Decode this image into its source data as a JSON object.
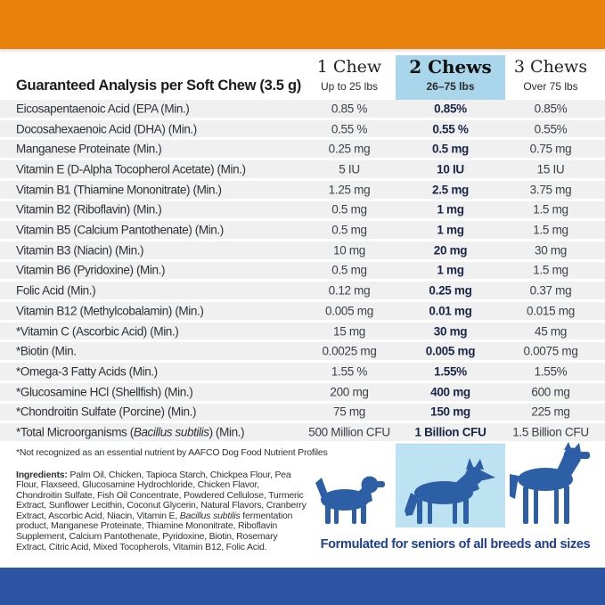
{
  "colors": {
    "orange": "#EA820E",
    "highlight_blue": "#A9D6EA",
    "highlight_blue_light": "#BDE3F2",
    "footer_navy": "#2B55A2",
    "dog_blue": "#2D5FA6",
    "tagline_navy": "#1D3E92",
    "row_gray": "#F0F0F1",
    "highlight_value_navy": "#1B2647"
  },
  "header": {
    "title": "Guaranteed Analysis per Soft Chew (3.5 g)",
    "columns": [
      {
        "dose": "1 Chew",
        "weight": "Up to 25 lbs",
        "highlight": false
      },
      {
        "dose": "2 Chews",
        "weight": "26–75 lbs",
        "highlight": true
      },
      {
        "dose": "3 Chews",
        "weight": "Over 75 lbs",
        "highlight": false
      }
    ]
  },
  "table": {
    "rows": [
      {
        "label": [
          {
            "t": "Eicosapentaenoic Acid (EPA (Min.)"
          }
        ],
        "values": [
          "0.85 %",
          "0.85%",
          "0.85%"
        ]
      },
      {
        "label": [
          {
            "t": "Docosahexaenoic Acid (DHA) (Min.)"
          }
        ],
        "values": [
          "0.55 %",
          "0.55 %",
          "0.55%"
        ]
      },
      {
        "label": [
          {
            "t": "Manganese Proteinate (Min.)"
          }
        ],
        "values": [
          "0.25 mg",
          "0.5 mg",
          "0.75 mg"
        ]
      },
      {
        "label": [
          {
            "t": "Vitamin E (D-Alpha Tocopherol Acetate) (Min.)"
          }
        ],
        "values": [
          "5 IU",
          "10 IU",
          "15 IU"
        ]
      },
      {
        "label": [
          {
            "t": "Vitamin B1 (Thiamine Mononitrate) (Min.)"
          }
        ],
        "values": [
          "1.25 mg",
          "2.5 mg",
          "3.75 mg"
        ]
      },
      {
        "label": [
          {
            "t": "Vitamin B2 (Riboflavin) (Min.)"
          }
        ],
        "values": [
          "0.5 mg",
          "1 mg",
          "1.5 mg"
        ]
      },
      {
        "label": [
          {
            "t": "Vitamin B5 (Calcium Pantothenate) (Min.)"
          }
        ],
        "values": [
          "0.5 mg",
          "1 mg",
          "1.5 mg"
        ]
      },
      {
        "label": [
          {
            "t": "Vitamin B3 (Niacin) (Min.)"
          }
        ],
        "values": [
          "10 mg",
          "20 mg",
          "30 mg"
        ]
      },
      {
        "label": [
          {
            "t": "Vitamin B6 (Pyridoxine) (Min.)"
          }
        ],
        "values": [
          "0.5 mg",
          "1 mg",
          "1.5 mg"
        ]
      },
      {
        "label": [
          {
            "t": "Folic Acid (Min.)"
          }
        ],
        "values": [
          "0.12 mg",
          "0.25 mg",
          "0.37 mg"
        ]
      },
      {
        "label": [
          {
            "t": "Vitamin B12 (Methylcobalamin) (Min.)"
          }
        ],
        "values": [
          "0.005 mg",
          "0.01 mg",
          "0.015 mg"
        ]
      },
      {
        "label": [
          {
            "t": "*Vitamin C (Ascorbic Acid) (Min.)"
          }
        ],
        "values": [
          "15 mg",
          "30 mg",
          "45 mg"
        ]
      },
      {
        "label": [
          {
            "t": "*Biotin (Min."
          }
        ],
        "values": [
          "0.0025 mg",
          "0.005 mg",
          "0.0075 mg"
        ]
      },
      {
        "label": [
          {
            "t": "*Omega-3 Fatty Acids (Min.)"
          }
        ],
        "values": [
          "1.55 %",
          "1.55%",
          "1.55%"
        ]
      },
      {
        "label": [
          {
            "t": "*Glucosamine HCl (Shellfish) (Min.)"
          }
        ],
        "values": [
          "200 mg",
          "400 mg",
          "600 mg"
        ]
      },
      {
        "label": [
          {
            "t": "*Chondroitin Sulfate (Porcine) (Min.)"
          }
        ],
        "values": [
          "75 mg",
          "150 mg",
          "225 mg"
        ]
      },
      {
        "label": [
          {
            "t": "*Total Microorganisms ("
          },
          {
            "t": "Bacillus subtilis",
            "i": true
          },
          {
            "t": ") (Min.)"
          }
        ],
        "values": [
          "500 Million CFU",
          "1 Billion CFU",
          "1.5 Billion CFU"
        ]
      }
    ]
  },
  "footnote": "*Not recognized as an essential nutrient by AAFCO Dog Food Nutrient Profiles",
  "ingredients": {
    "segments": [
      {
        "t": "Ingredients:",
        "b": true
      },
      {
        "t": " Palm Oil, Chicken, Tapioca Starch, Chickpea Flour, Pea Flour, Flaxseed, Glucosamine Hydrochloride, Chicken Flavor, Chondroitin Sulfate, Fish Oil Concentrate, Powdered Cellulose, Turmeric Extract, Sunflower Lecithin, Coconut Glycerin, Natural Flavors, Cranberry Extract, Ascorbic Acid, Niacin, Vitamin E, "
      },
      {
        "t": "Bacillus subtilis",
        "i": true
      },
      {
        "t": " fermentation product, Manganese Proteinate, Thiamine Mononitrate, Riboflavin Supplement, Calcium Pantothenate, Pyridoxine, Biotin, Rosemary Extract, Citric Acid, Mixed Tocopherols, Vitamin B12, Folic Acid."
      }
    ]
  },
  "tagline": "Formulated for seniors of all breeds and sizes",
  "icons": {
    "dogs": [
      "small-dog-silhouette",
      "medium-dog-silhouette",
      "large-dog-silhouette"
    ]
  }
}
